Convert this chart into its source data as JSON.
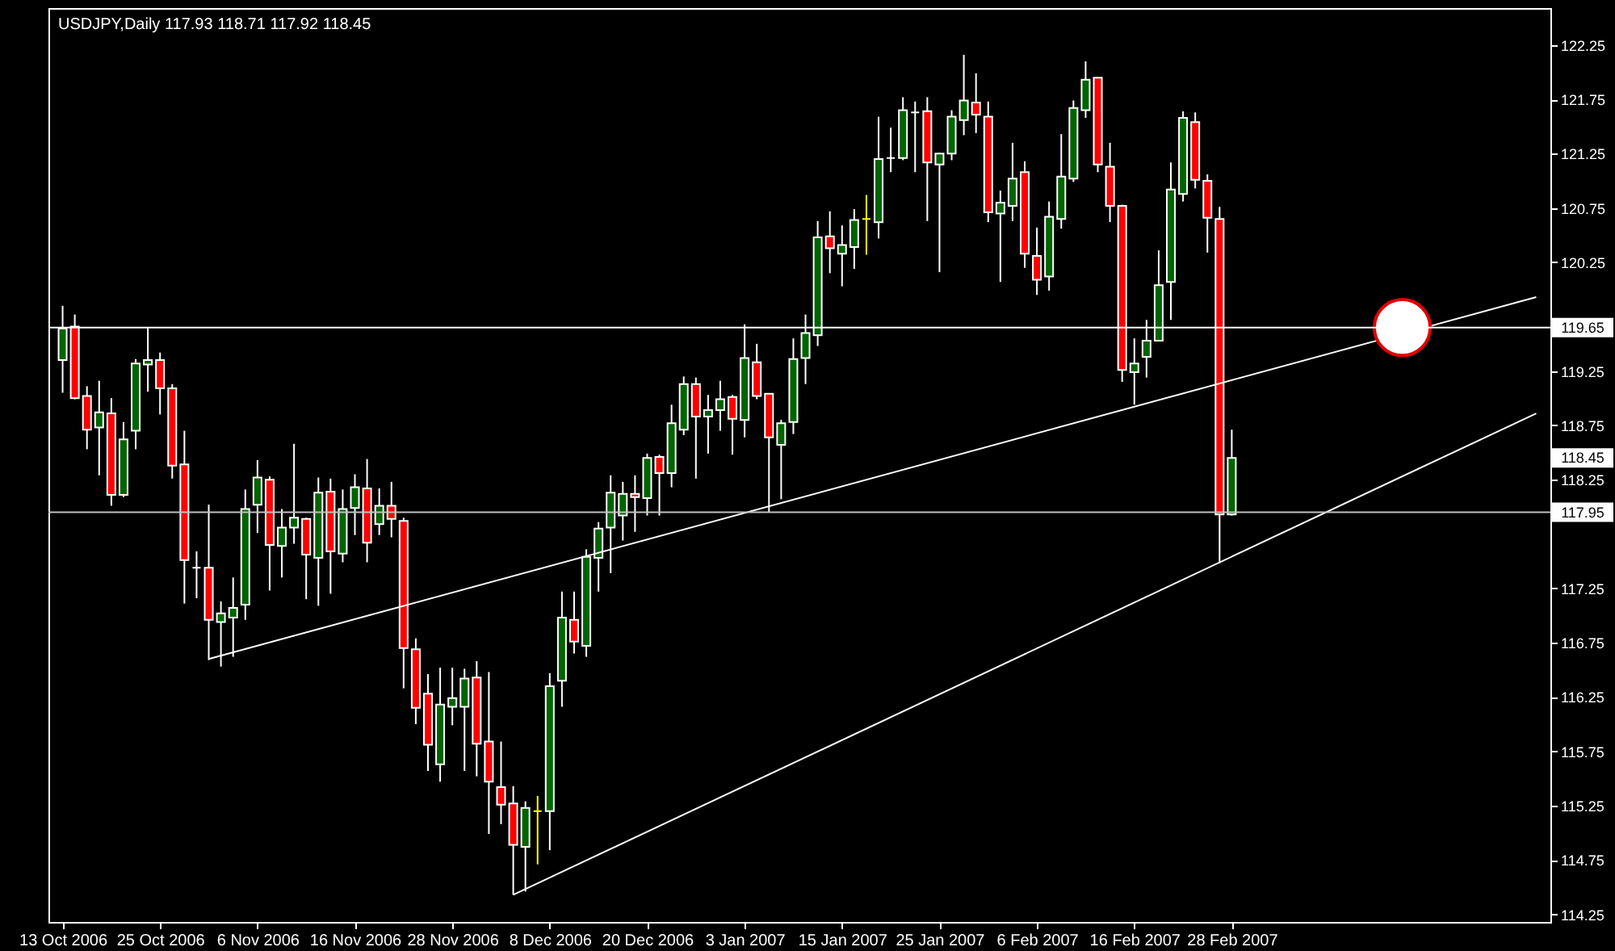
{
  "chart_data": {
    "type": "candlestick",
    "title": "USDJPY,Daily  117.93 118.71 117.92 118.45",
    "categories": [
      "13 Oct 2006",
      null,
      null,
      null,
      null,
      null,
      null,
      null,
      "25 Oct 2006",
      null,
      null,
      null,
      null,
      null,
      null,
      null,
      "6 Nov 2006",
      null,
      null,
      null,
      null,
      null,
      null,
      null,
      "16 Nov 2006",
      null,
      null,
      null,
      null,
      null,
      null,
      null,
      "28 Nov 2006",
      null,
      null,
      null,
      null,
      null,
      null,
      null,
      "8 Dec 2006",
      null,
      null,
      null,
      null,
      null,
      null,
      null,
      "20 Dec 2006",
      null,
      null,
      null,
      null,
      null,
      null,
      null,
      "3 Jan 2007",
      null,
      null,
      null,
      null,
      null,
      null,
      null,
      "15 Jan 2007",
      null,
      null,
      null,
      null,
      null,
      null,
      null,
      "25 Jan 2007",
      null,
      null,
      null,
      null,
      null,
      null,
      null,
      "6 Feb 2007",
      null,
      null,
      null,
      null,
      null,
      null,
      null,
      "16 Feb 2007",
      null,
      null,
      null,
      null,
      null,
      null,
      null,
      "28 Feb 2007",
      null,
      null,
      null,
      null,
      null,
      null,
      null,
      null,
      null,
      null,
      null,
      null,
      null,
      null,
      null,
      null,
      null,
      null,
      null,
      null,
      null,
      null,
      null,
      null,
      null
    ],
    "ylim": [
      114.18,
      122.59
    ],
    "yticks": [
      114.25,
      114.75,
      115.25,
      115.75,
      116.25,
      116.75,
      117.25,
      118.25,
      118.75,
      119.25,
      120.25,
      120.75,
      121.25,
      121.75,
      122.25
    ],
    "series": [
      {
        "type": "candlestick",
        "color": "#ffffff",
        "ohlc": [
          [
            119.35,
            119.85,
            119.05,
            119.64
          ],
          [
            119.66,
            119.77,
            118.99,
            119.0
          ],
          [
            119.02,
            119.11,
            118.53,
            118.71
          ],
          [
            118.73,
            119.16,
            118.29,
            118.87
          ],
          [
            118.86,
            119.0,
            118.01,
            118.11
          ],
          [
            118.11,
            118.78,
            118.09,
            118.62
          ],
          [
            118.7,
            119.36,
            118.53,
            119.32
          ],
          [
            119.31,
            119.65,
            119.06,
            119.35
          ],
          [
            119.35,
            119.42,
            118.85,
            119.09
          ],
          [
            119.09,
            119.13,
            118.26,
            118.38
          ],
          [
            118.39,
            118.7,
            117.11,
            117.51
          ],
          [
            117.44,
            117.59,
            117.16,
            117.44
          ],
          [
            117.44,
            118.02,
            116.59,
            116.96
          ],
          [
            116.94,
            117.13,
            116.53,
            117.02
          ],
          [
            116.98,
            117.35,
            116.62,
            117.07
          ],
          [
            117.1,
            118.16,
            116.96,
            117.98
          ],
          [
            118.02,
            118.43,
            117.76,
            118.27
          ],
          [
            118.25,
            118.28,
            117.23,
            117.65
          ],
          [
            117.64,
            117.98,
            117.35,
            117.81
          ],
          [
            117.81,
            118.58,
            117.66,
            117.9
          ],
          [
            117.89,
            117.9,
            117.15,
            117.56
          ],
          [
            117.53,
            118.27,
            117.09,
            118.13
          ],
          [
            118.14,
            118.26,
            117.2,
            117.59
          ],
          [
            117.57,
            118.16,
            117.49,
            117.98
          ],
          [
            117.99,
            118.3,
            117.74,
            118.18
          ],
          [
            118.17,
            118.44,
            117.49,
            117.67
          ],
          [
            117.84,
            118.17,
            117.74,
            118.01
          ],
          [
            118.01,
            118.23,
            117.72,
            117.89
          ],
          [
            117.87,
            117.9,
            116.33,
            116.7
          ],
          [
            116.69,
            116.79,
            116.0,
            116.15
          ],
          [
            116.28,
            116.46,
            115.57,
            115.81
          ],
          [
            115.63,
            116.52,
            115.47,
            116.18
          ],
          [
            116.16,
            116.52,
            115.99,
            116.24
          ],
          [
            116.16,
            116.51,
            115.57,
            116.42
          ],
          [
            116.43,
            116.58,
            115.52,
            115.82
          ],
          [
            115.84,
            116.48,
            114.99,
            115.47
          ],
          [
            115.42,
            115.84,
            115.08,
            115.26
          ],
          [
            115.27,
            115.43,
            114.43,
            114.89
          ],
          [
            114.87,
            115.29,
            114.46,
            115.23
          ],
          [
            115.2,
            115.34,
            114.71,
            115.2
          ],
          [
            115.2,
            116.47,
            114.84,
            116.35
          ],
          [
            116.4,
            117.22,
            116.16,
            116.98
          ],
          [
            116.96,
            117.22,
            116.65,
            116.76
          ],
          [
            116.72,
            117.61,
            116.62,
            117.54
          ],
          [
            117.53,
            117.86,
            117.22,
            117.8
          ],
          [
            117.81,
            118.29,
            117.39,
            118.13
          ],
          [
            117.92,
            118.23,
            117.69,
            118.12
          ],
          [
            118.12,
            118.29,
            117.77,
            118.09
          ],
          [
            118.08,
            118.49,
            117.92,
            118.45
          ],
          [
            118.46,
            118.48,
            117.92,
            118.31
          ],
          [
            118.31,
            118.94,
            118.18,
            118.77
          ],
          [
            118.71,
            119.2,
            118.66,
            119.13
          ],
          [
            119.13,
            119.19,
            118.26,
            118.83
          ],
          [
            118.83,
            119.03,
            118.49,
            118.89
          ],
          [
            118.89,
            119.16,
            118.7,
            118.99
          ],
          [
            119.01,
            119.03,
            118.48,
            118.81
          ],
          [
            118.8,
            119.68,
            118.64,
            119.37
          ],
          [
            119.33,
            119.5,
            118.99,
            119.02
          ],
          [
            119.04,
            119.04,
            117.95,
            118.64
          ],
          [
            118.57,
            118.8,
            118.07,
            118.77
          ],
          [
            118.78,
            119.55,
            118.67,
            119.36
          ],
          [
            119.37,
            119.77,
            119.13,
            119.6
          ],
          [
            119.58,
            120.63,
            119.48,
            120.48
          ],
          [
            120.49,
            120.72,
            120.15,
            120.38
          ],
          [
            120.33,
            120.59,
            120.03,
            120.41
          ],
          [
            120.39,
            120.74,
            120.19,
            120.64
          ],
          [
            120.65,
            120.87,
            120.32,
            120.65
          ],
          [
            120.62,
            121.59,
            120.47,
            121.2
          ],
          [
            121.21,
            121.49,
            121.08,
            121.21
          ],
          [
            121.21,
            121.77,
            121.19,
            121.65
          ],
          [
            121.63,
            121.73,
            121.08,
            121.63
          ],
          [
            121.64,
            121.77,
            120.63,
            121.17
          ],
          [
            121.15,
            121.26,
            120.16,
            121.25
          ],
          [
            121.25,
            121.65,
            121.19,
            121.59
          ],
          [
            121.56,
            122.16,
            121.42,
            121.74
          ],
          [
            121.72,
            121.99,
            121.44,
            121.61
          ],
          [
            121.59,
            121.73,
            120.62,
            120.71
          ],
          [
            120.7,
            120.91,
            120.07,
            120.8
          ],
          [
            120.77,
            121.35,
            120.63,
            121.02
          ],
          [
            121.08,
            121.18,
            120.2,
            120.33
          ],
          [
            120.31,
            120.57,
            119.95,
            120.09
          ],
          [
            120.12,
            120.81,
            119.99,
            120.67
          ],
          [
            120.65,
            121.43,
            120.56,
            121.04
          ],
          [
            121.02,
            121.74,
            120.99,
            121.67
          ],
          [
            121.65,
            122.1,
            121.58,
            121.93
          ],
          [
            121.95,
            121.95,
            121.08,
            121.15
          ],
          [
            121.13,
            121.35,
            120.62,
            120.77
          ],
          [
            120.77,
            120.78,
            119.15,
            119.26
          ],
          [
            119.24,
            119.55,
            118.94,
            119.32
          ],
          [
            119.38,
            119.72,
            119.19,
            119.53
          ],
          [
            119.53,
            120.36,
            119.53,
            120.04
          ],
          [
            120.07,
            121.17,
            119.72,
            120.92
          ],
          [
            120.88,
            121.64,
            120.81,
            121.58
          ],
          [
            121.54,
            121.63,
            120.93,
            121.01
          ],
          [
            121.0,
            121.06,
            120.34,
            120.66
          ],
          [
            120.65,
            120.76,
            117.48,
            117.93
          ],
          [
            117.93,
            118.71,
            117.92,
            118.45
          ],
          null,
          null,
          null,
          null,
          null,
          null,
          null,
          null,
          null,
          null,
          null,
          null,
          null,
          null,
          null,
          null,
          null,
          null,
          null,
          null,
          null,
          null,
          null,
          null,
          null
        ],
        "colors": [
          "#006400",
          "#ff0000",
          "#ff0000",
          "#006400",
          "#ff0000",
          "#006400",
          "#006400",
          "#006400",
          "#ff0000",
          "#ff0000",
          "#ff0000",
          "#ffffff",
          "#ff0000",
          "#006400",
          "#006400",
          "#006400",
          "#006400",
          "#ff0000",
          "#006400",
          "#006400",
          "#ff0000",
          "#006400",
          "#ff0000",
          "#006400",
          "#006400",
          "#ff0000",
          "#006400",
          "#ff0000",
          "#ff0000",
          "#ff0000",
          "#ff0000",
          "#006400",
          "#006400",
          "#006400",
          "#ff0000",
          "#ff0000",
          "#ff0000",
          "#ff0000",
          "#006400",
          "#ffff00",
          "#006400",
          "#006400",
          "#ff0000",
          "#006400",
          "#006400",
          "#006400",
          "#006400",
          "#ff0000",
          "#006400",
          "#ff0000",
          "#006400",
          "#006400",
          "#ff0000",
          "#006400",
          "#006400",
          "#ff0000",
          "#006400",
          "#ff0000",
          "#ff0000",
          "#006400",
          "#006400",
          "#006400",
          "#006400",
          "#ff0000",
          "#006400",
          "#006400",
          "#ffff00",
          "#006400",
          "#ffffff",
          "#006400",
          "#ffffff",
          "#ff0000",
          "#006400",
          "#006400",
          "#006400",
          "#ff0000",
          "#ff0000",
          "#006400",
          "#006400",
          "#ff0000",
          "#ff0000",
          "#006400",
          "#006400",
          "#006400",
          "#006400",
          "#ff0000",
          "#ff0000",
          "#ff0000",
          "#006400",
          "#006400",
          "#006400",
          "#006400",
          "#006400",
          "#ff0000",
          "#ff0000",
          "#ff0000",
          "#006400",
          null,
          null,
          null,
          null,
          null,
          null,
          null,
          null,
          null,
          null,
          null,
          null,
          null,
          null,
          null,
          null,
          null,
          null,
          null,
          null,
          null,
          null,
          null,
          null,
          null
        ]
      },
      {
        "type": "line",
        "color": "#ffffff",
        "values": [
          null,
          null,
          null,
          null,
          null,
          null,
          null,
          null,
          null,
          null,
          null,
          null,
          116.6,
          null,
          null,
          null,
          null,
          null,
          null,
          null,
          null,
          null,
          null,
          null,
          null,
          null,
          null,
          null,
          null,
          null,
          null,
          null,
          null,
          null,
          null,
          null,
          null,
          null,
          null,
          null,
          null,
          null,
          null,
          null,
          null,
          null,
          null,
          null,
          null,
          null,
          null,
          null,
          null,
          null,
          null,
          null,
          null,
          null,
          null,
          null,
          null,
          null,
          null,
          null,
          null,
          null,
          null,
          null,
          null,
          null,
          null,
          null,
          null,
          null,
          null,
          null,
          null,
          null,
          null,
          null,
          null,
          null,
          null,
          null,
          null,
          null,
          null,
          null,
          null,
          null,
          null,
          null,
          null,
          null,
          null,
          null,
          null,
          null,
          null,
          null,
          null,
          null,
          null,
          null,
          null,
          null,
          null,
          null,
          null,
          null,
          null,
          null,
          null,
          null,
          null,
          null,
          null,
          null,
          null,
          null,
          null,
          119.93
        ]
      },
      {
        "type": "line",
        "color": "#ffffff",
        "values": [
          null,
          null,
          null,
          null,
          null,
          null,
          null,
          null,
          null,
          null,
          null,
          null,
          null,
          null,
          null,
          null,
          null,
          null,
          null,
          null,
          null,
          null,
          null,
          null,
          null,
          null,
          null,
          null,
          null,
          null,
          null,
          null,
          null,
          null,
          null,
          null,
          null,
          114.43,
          null,
          null,
          null,
          null,
          null,
          null,
          null,
          null,
          null,
          null,
          null,
          null,
          null,
          null,
          null,
          null,
          null,
          null,
          null,
          null,
          null,
          null,
          null,
          null,
          null,
          null,
          null,
          null,
          null,
          null,
          null,
          null,
          null,
          null,
          null,
          null,
          null,
          null,
          null,
          null,
          null,
          null,
          null,
          null,
          null,
          null,
          null,
          null,
          null,
          null,
          null,
          null,
          null,
          null,
          null,
          null,
          null,
          null,
          null,
          null,
          null,
          null,
          null,
          null,
          null,
          null,
          null,
          null,
          null,
          null,
          null,
          null,
          null,
          null,
          null,
          null,
          null,
          null,
          null,
          null,
          null,
          null,
          null,
          118.86
        ]
      },
      {
        "type": "scatter",
        "color": "#ffffff",
        "marker": "circle",
        "values": [
          null,
          null,
          null,
          null,
          null,
          null,
          null,
          null,
          null,
          null,
          null,
          null,
          null,
          null,
          null,
          null,
          null,
          null,
          null,
          null,
          null,
          null,
          null,
          null,
          null,
          null,
          null,
          null,
          null,
          null,
          null,
          null,
          null,
          null,
          null,
          null,
          null,
          null,
          null,
          null,
          null,
          null,
          null,
          null,
          null,
          null,
          null,
          null,
          null,
          null,
          null,
          null,
          null,
          null,
          null,
          null,
          null,
          null,
          null,
          null,
          null,
          null,
          null,
          null,
          null,
          null,
          null,
          null,
          null,
          null,
          null,
          null,
          null,
          null,
          null,
          null,
          null,
          null,
          null,
          null,
          null,
          null,
          null,
          null,
          null,
          null,
          null,
          null,
          null,
          null,
          null,
          null,
          null,
          null,
          null,
          null,
          null,
          null,
          null,
          null,
          null,
          null,
          null,
          null,
          null,
          null,
          null,
          null,
          null,
          null,
          119.65,
          null,
          null,
          null,
          null,
          null,
          null,
          null,
          null,
          null,
          null,
          null
        ]
      }
    ],
    "ref_lines": [
      {
        "axis": "y",
        "value": 119.65,
        "label": "119.65",
        "color": "#ffffff"
      },
      {
        "axis": "y",
        "value": 117.95,
        "label": "117.95",
        "color": "#c0c0c0"
      }
    ],
    "annotations": [
      "118.45"
    ]
  }
}
